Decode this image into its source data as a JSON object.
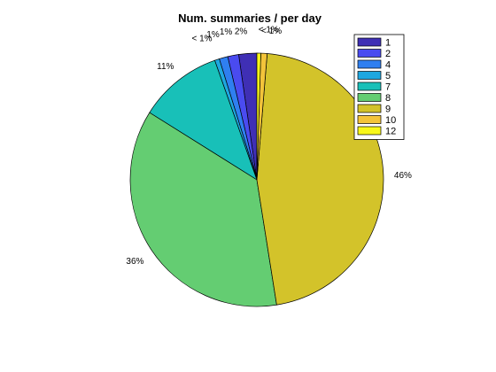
{
  "chart_data": {
    "type": "pie",
    "title": "Num. summaries / per day",
    "categories": [
      "1",
      "2",
      "4",
      "5",
      "7",
      "8",
      "9",
      "10",
      "12"
    ],
    "values": [
      2.3,
      1.4,
      1.1,
      0.6,
      10.7,
      36.4,
      46.2,
      0.8,
      0.5
    ],
    "slice_labels": [
      "2%",
      "1%",
      "1%",
      "< 1%",
      "11%",
      "36%",
      "46%",
      "< 1%",
      "< 1%"
    ],
    "colors": [
      "#3f2fb5",
      "#4a4bf0",
      "#2f7ff0",
      "#1ea7e0",
      "#18c0b8",
      "#64cd72",
      "#d3c32a",
      "#f3c43a",
      "#f8f71a"
    ],
    "legend": {
      "entries": [
        "1",
        "2",
        "4",
        "5",
        "7",
        "8",
        "9",
        "10",
        "12"
      ],
      "location": "top-right"
    },
    "start": "top",
    "direction": "counterclockwise",
    "grid": false
  }
}
